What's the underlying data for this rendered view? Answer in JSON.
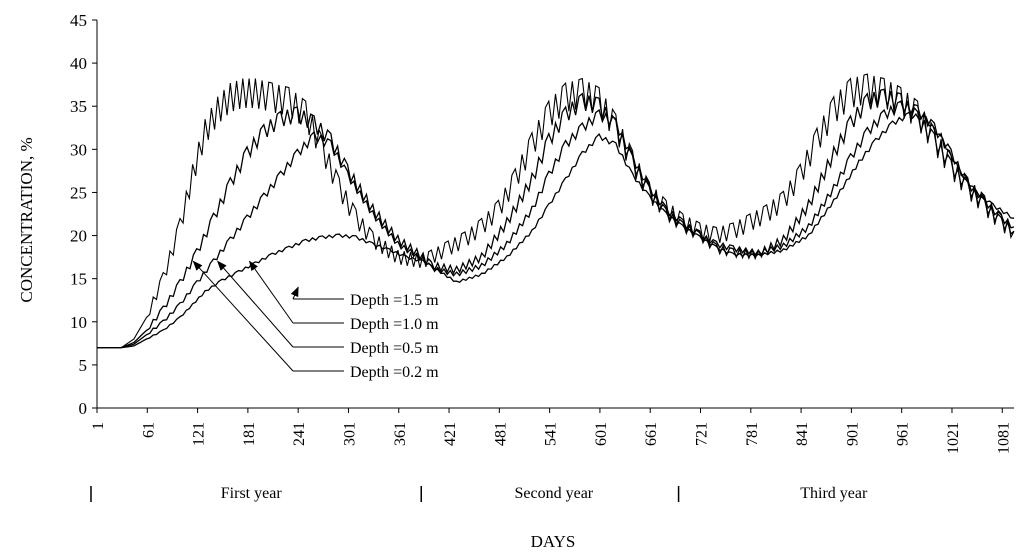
{
  "chart_data": {
    "type": "line",
    "ylabel": "CONCENTRATION, %",
    "xlabel": "DAYS",
    "ylim": [
      0,
      45
    ],
    "xlim": [
      1,
      1095
    ],
    "y_ticks": [
      "0",
      "5",
      "10",
      "15",
      "20",
      "25",
      "30",
      "35",
      "40",
      "45"
    ],
    "x_ticks": [
      "1",
      "61",
      "121",
      "181",
      "241",
      "301",
      "361",
      "421",
      "481",
      "541",
      "601",
      "661",
      "721",
      "781",
      "841",
      "901",
      "961",
      "1021",
      "1081"
    ],
    "grid": false,
    "year_labels": [
      "First year",
      "Second year",
      "Third year"
    ],
    "series": [
      {
        "name": "Depth =1.5 m",
        "x": [
          1,
          30,
          45,
          60,
          80,
          100,
          115,
          130,
          150,
          170,
          190,
          210,
          230,
          250,
          270,
          290,
          310,
          330,
          350,
          370,
          390,
          400,
          430,
          460,
          490,
          520,
          540,
          560,
          580,
          600,
          620,
          640,
          660,
          680,
          700,
          720,
          740,
          760,
          790,
          820,
          850,
          880,
          910,
          930,
          950,
          970,
          990,
          1010,
          1030,
          1050,
          1070,
          1095
        ],
        "y": [
          7,
          7,
          7.2,
          8,
          9,
          10.5,
          12,
          13.5,
          14.8,
          15.8,
          16.8,
          17.8,
          18.6,
          19.4,
          19.8,
          20,
          19.8,
          19,
          18.3,
          17.5,
          17,
          16.4,
          14.6,
          15.5,
          17.5,
          20.5,
          23.5,
          26.5,
          29.5,
          31.5,
          30.5,
          27,
          24.5,
          22.5,
          21,
          19.8,
          18.6,
          17.8,
          17.7,
          18.3,
          20,
          24,
          28.5,
          31,
          33,
          34,
          33.5,
          31,
          27.5,
          25,
          23.5,
          22
        ]
      },
      {
        "name": "Depth =1.0 m",
        "x": [
          1,
          30,
          45,
          60,
          80,
          100,
          120,
          140,
          160,
          180,
          200,
          220,
          240,
          260,
          280,
          300,
          330,
          360,
          390,
          400,
          430,
          460,
          490,
          520,
          540,
          560,
          580,
          600,
          620,
          640,
          660,
          680,
          700,
          720,
          740,
          760,
          790,
          820,
          850,
          880,
          900,
          920,
          940,
          960,
          980,
          1000,
          1020,
          1040,
          1060,
          1080,
          1095
        ],
        "y": [
          7,
          7,
          7.4,
          8.5,
          10,
          12,
          14.5,
          17,
          19.5,
          22,
          24.5,
          27,
          29.5,
          31.5,
          30.5,
          27,
          22.5,
          19,
          17.2,
          16.2,
          15.5,
          16.5,
          19,
          23,
          27,
          30.5,
          32.5,
          34,
          33,
          29,
          25.5,
          23,
          21.5,
          20,
          19,
          18.5,
          18,
          18.8,
          21,
          25.5,
          29,
          32,
          34,
          35,
          34.5,
          32.5,
          29.5,
          26,
          24,
          22,
          21
        ]
      },
      {
        "name": "Depth =0.5 m",
        "x": [
          1,
          30,
          45,
          60,
          80,
          100,
          120,
          140,
          160,
          180,
          200,
          220,
          240,
          260,
          280,
          300,
          330,
          360,
          390,
          400,
          430,
          460,
          490,
          520,
          540,
          560,
          580,
          600,
          620,
          640,
          660,
          680,
          700,
          720,
          740,
          760,
          790,
          820,
          850,
          880,
          900,
          920,
          940,
          960,
          980,
          1000,
          1020,
          1040,
          1060,
          1080,
          1095
        ],
        "y": [
          7,
          7,
          7.6,
          9,
          11.5,
          14.5,
          18,
          22,
          26,
          29.5,
          32,
          33.5,
          34,
          33,
          31,
          27.5,
          23,
          19.5,
          17.5,
          16.5,
          16,
          17.5,
          21.5,
          26.5,
          31,
          34,
          35.5,
          35,
          32.5,
          28.5,
          25,
          22.5,
          21,
          20,
          18.5,
          18,
          17.8,
          19.5,
          23.5,
          29.5,
          33,
          35.5,
          36,
          35.5,
          33.5,
          31,
          28,
          25.5,
          23.5,
          21.5,
          20.5
        ]
      },
      {
        "name": "Depth =0.2 m",
        "x": [
          1,
          30,
          45,
          60,
          80,
          100,
          115,
          130,
          145,
          160,
          175,
          190,
          210,
          230,
          250,
          270,
          290,
          310,
          330,
          360,
          390,
          400,
          420,
          440,
          460,
          480,
          500,
          520,
          540,
          560,
          580,
          600,
          620,
          640,
          660,
          680,
          700,
          720,
          740,
          760,
          780,
          800,
          820,
          840,
          860,
          880,
          900,
          920,
          940,
          960,
          980,
          1000,
          1020,
          1040,
          1060,
          1080,
          1095
        ],
        "y": [
          7,
          7,
          8,
          10.5,
          15,
          21,
          27,
          32,
          34.5,
          36,
          36.5,
          36.5,
          36,
          35.5,
          34,
          30,
          25.5,
          22,
          19.5,
          17.5,
          17,
          17.5,
          18.5,
          19.5,
          21,
          23,
          26.5,
          30.5,
          34,
          36,
          36.5,
          35.5,
          32.5,
          28.5,
          25,
          23,
          21.5,
          20.5,
          20,
          20.5,
          21.5,
          22.5,
          24,
          27,
          31,
          34.5,
          36.5,
          37,
          36.5,
          35.5,
          34,
          31,
          28,
          25.5,
          23.5,
          21.5,
          20.5
        ]
      }
    ],
    "annotations": [
      {
        "text": "Depth =1.5 m",
        "series": 0,
        "arrow_to": [
          241,
          14
        ]
      },
      {
        "text": "Depth =1.0 m",
        "series": 1,
        "arrow_to": [
          183,
          17
        ]
      },
      {
        "text": "Depth =0.5 m",
        "series": 2,
        "arrow_to": [
          145,
          17
        ]
      },
      {
        "text": "Depth =0.2 m",
        "series": 3,
        "arrow_to": [
          116,
          17
        ]
      }
    ]
  }
}
